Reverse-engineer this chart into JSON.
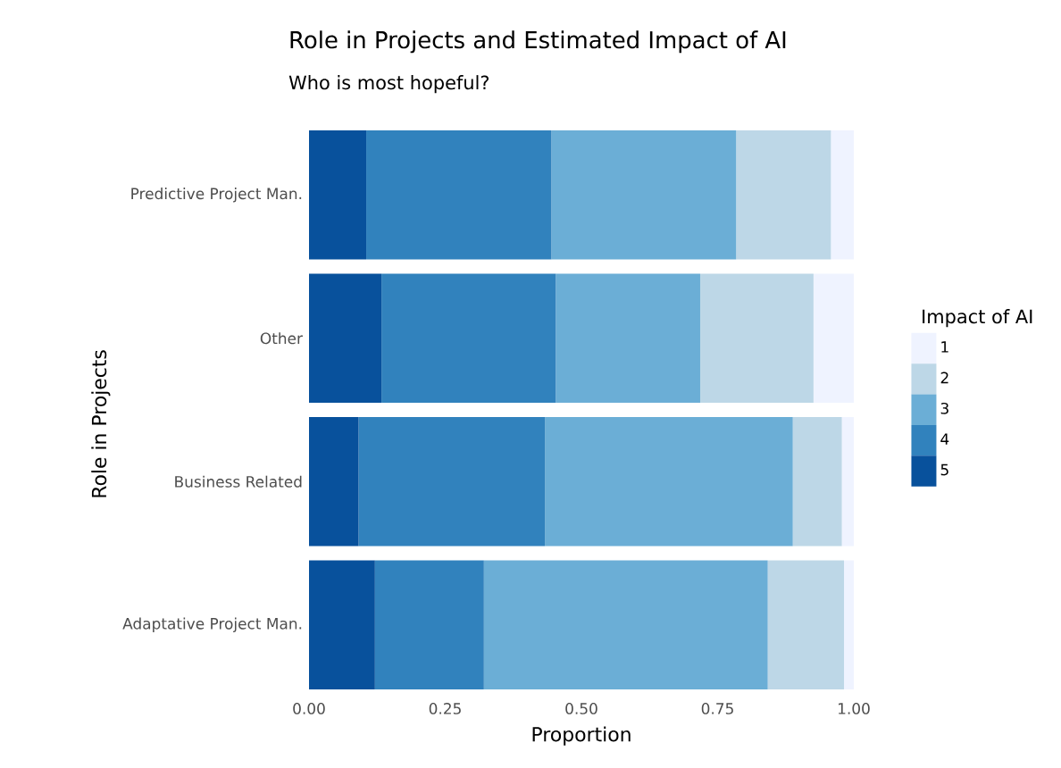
{
  "chart_data": {
    "type": "bar",
    "orientation": "horizontal",
    "stacked": true,
    "title": "Role in Projects and Estimated Impact of AI",
    "subtitle": "Who is most hopeful?",
    "xlabel": "Proportion",
    "ylabel": "Role in Projects",
    "legend_title": "Impact of AI",
    "legend": "right",
    "categories": [
      "Predictive Project Man.",
      "Other",
      "Business Related",
      "Adaptative Project Man."
    ],
    "xlim": [
      0,
      1
    ],
    "xticks": [
      {
        "value": 0,
        "label": "0.00"
      },
      {
        "value": 0.25,
        "label": "0.25"
      },
      {
        "value": 0.5,
        "label": "0.50"
      },
      {
        "value": 0.75,
        "label": "0.75"
      },
      {
        "value": 1,
        "label": "1.00"
      }
    ],
    "series": [
      {
        "name": "5",
        "color": "#08519c",
        "values": [
          0.105,
          0.133,
          0.091,
          0.121
        ]
      },
      {
        "name": "4",
        "color": "#3182bd",
        "values": [
          0.34,
          0.32,
          0.342,
          0.2
        ]
      },
      {
        "name": "3",
        "color": "#6baed6",
        "values": [
          0.339,
          0.265,
          0.455,
          0.521
        ]
      },
      {
        "name": "2",
        "color": "#bdd7e7",
        "values": [
          0.174,
          0.208,
          0.09,
          0.14
        ]
      },
      {
        "name": "1",
        "color": "#eff3ff",
        "values": [
          0.042,
          0.074,
          0.022,
          0.018
        ]
      }
    ]
  }
}
